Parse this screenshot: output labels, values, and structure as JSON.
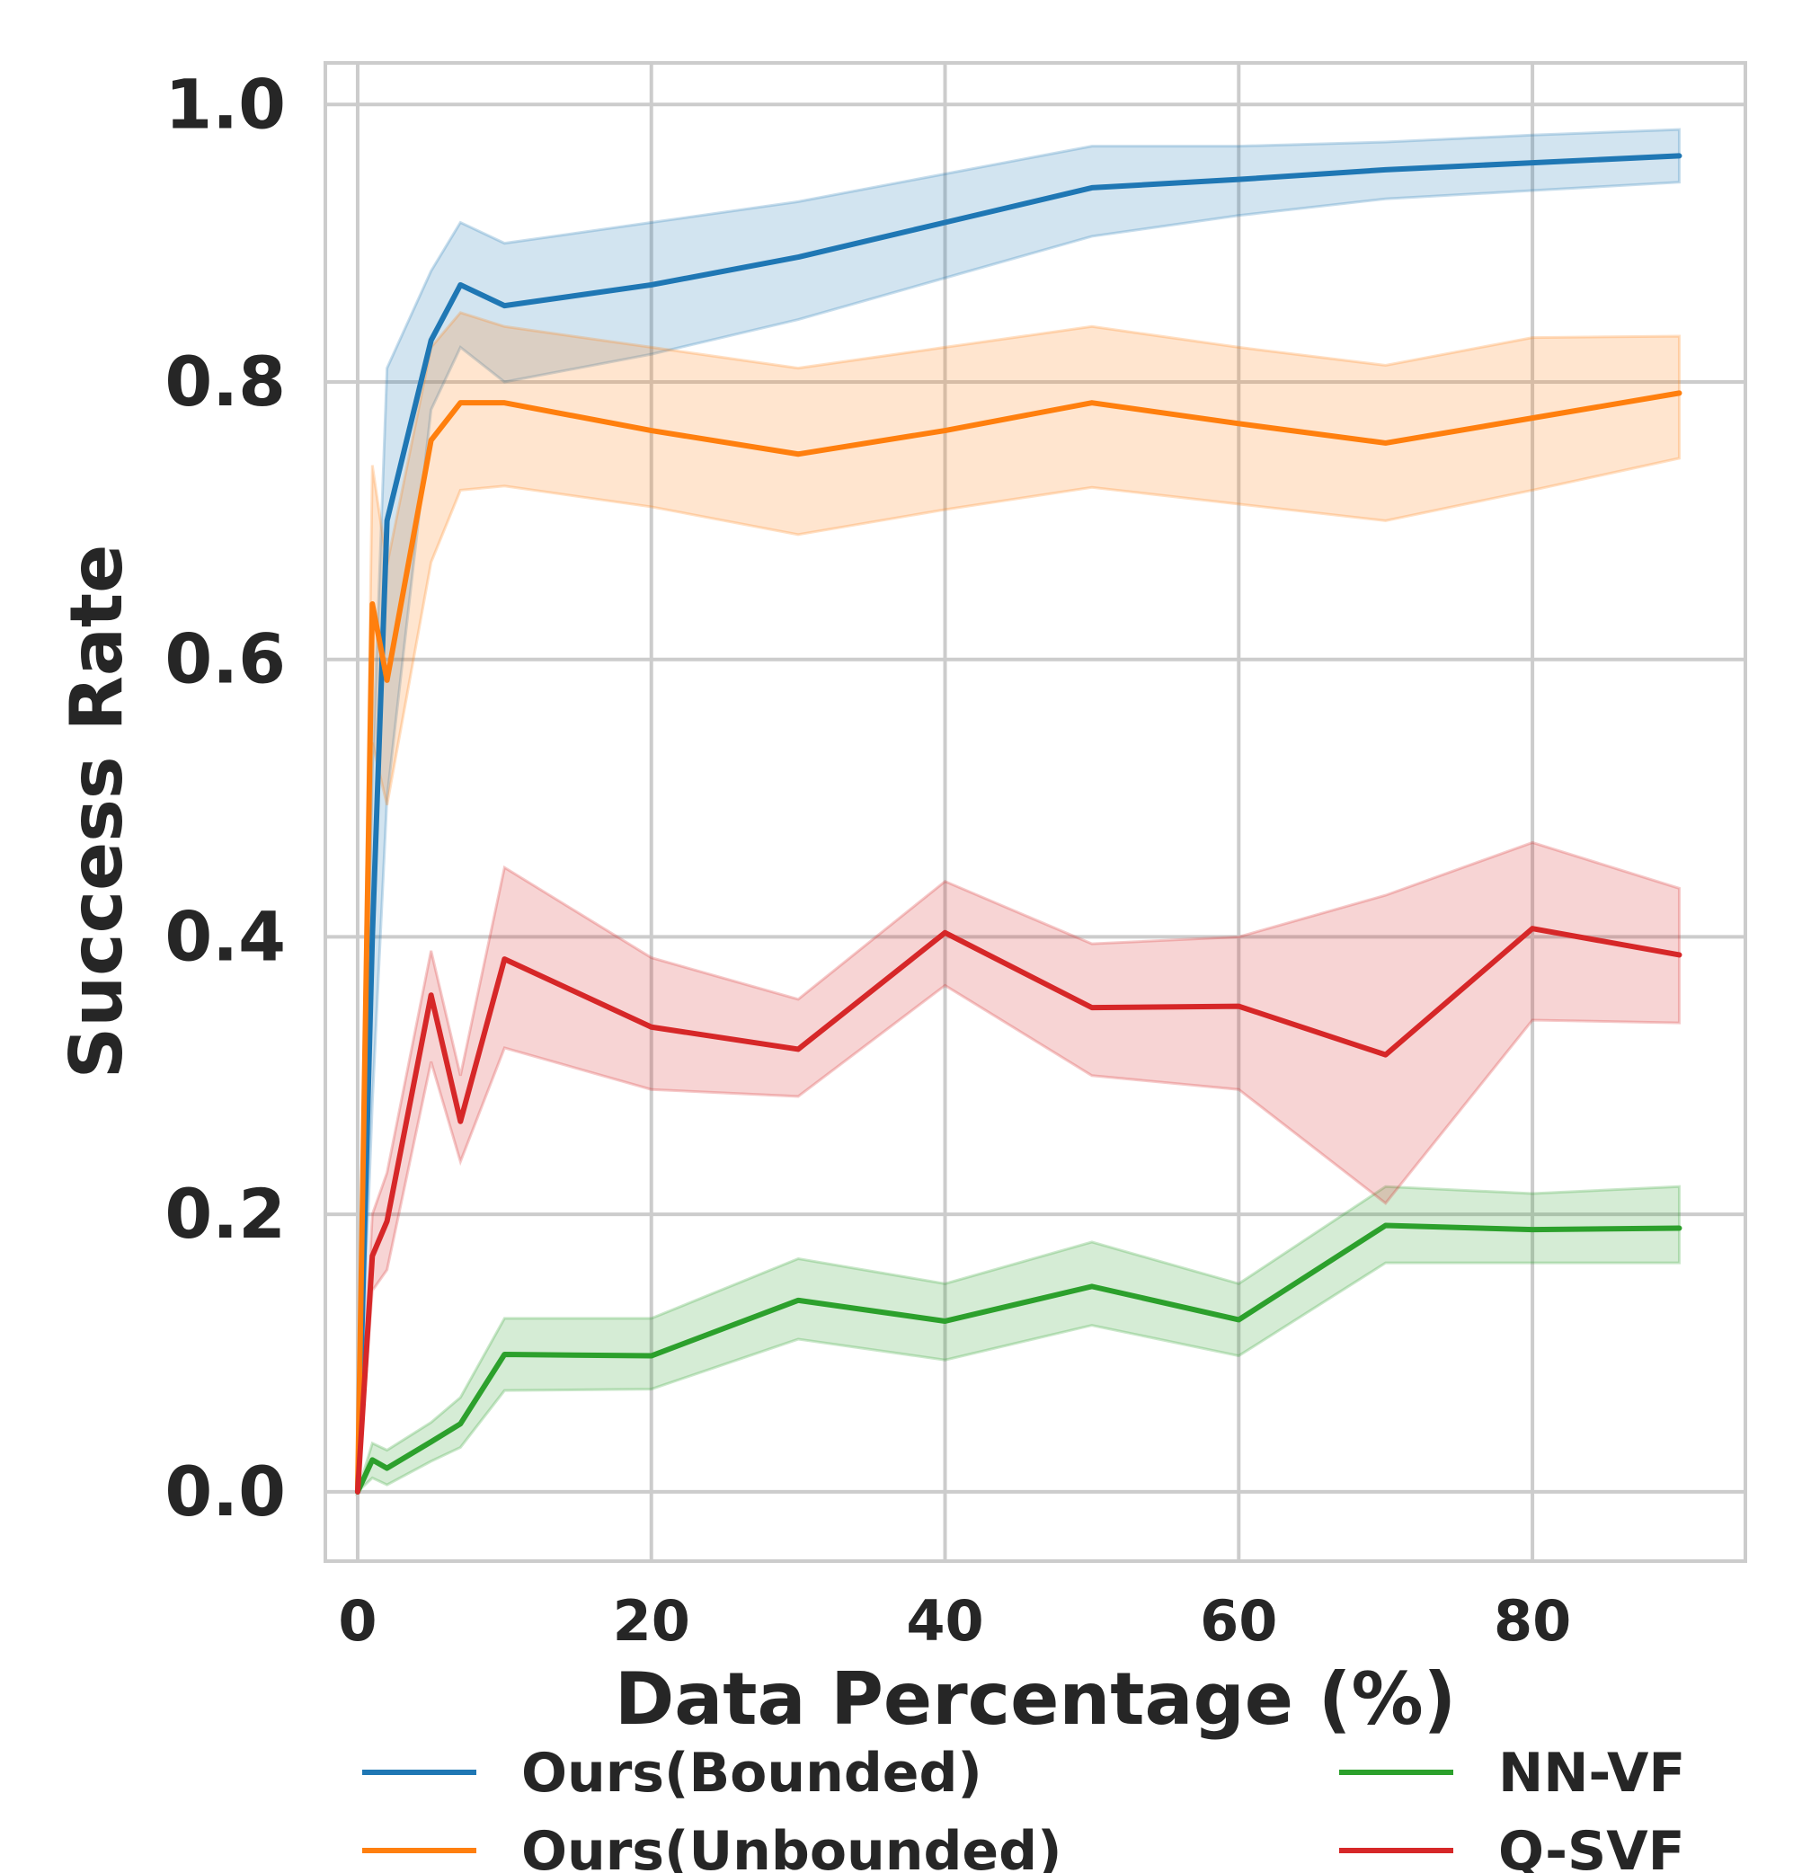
{
  "chart_data": {
    "type": "line",
    "title": "",
    "xlabel": "Data Percentage (%)",
    "ylabel": "Success Rate",
    "xlim": [
      -2.2,
      94.5
    ],
    "ylim": [
      -0.05,
      1.03
    ],
    "xticks": [
      0,
      20,
      40,
      60,
      80
    ],
    "yticks": [
      0.0,
      0.2,
      0.4,
      0.6,
      0.8,
      1.0
    ],
    "xtick_labels": [
      "0",
      "20",
      "40",
      "60",
      "80"
    ],
    "ytick_labels": [
      "0.0",
      "0.2",
      "0.4",
      "0.6",
      "0.8",
      "1.0"
    ],
    "grid": true,
    "legend_position": "bottom",
    "series": [
      {
        "name": "Ours(Bounded)",
        "color": "#1f77b4",
        "x": [
          0,
          1,
          2,
          5,
          7,
          10,
          20,
          30,
          40,
          50,
          60,
          70,
          80,
          90
        ],
        "values": [
          0.0,
          0.4,
          0.7,
          0.83,
          0.87,
          0.855,
          0.87,
          0.89,
          0.915,
          0.94,
          0.946,
          0.953,
          0.958,
          0.963
        ],
        "lower": [
          0.0,
          0.28,
          0.5,
          0.78,
          0.825,
          0.8,
          0.82,
          0.845,
          0.875,
          0.905,
          0.92,
          0.932,
          0.938,
          0.944
        ],
        "upper": [
          0.0,
          0.52,
          0.81,
          0.88,
          0.915,
          0.9,
          0.915,
          0.93,
          0.95,
          0.97,
          0.97,
          0.973,
          0.978,
          0.982
        ]
      },
      {
        "name": "Ours(Unbounded)",
        "color": "#ff7f0e",
        "x": [
          0,
          1,
          2,
          5,
          7,
          10,
          20,
          30,
          40,
          50,
          60,
          70,
          80,
          90
        ],
        "values": [
          0.0,
          0.64,
          0.585,
          0.758,
          0.785,
          0.785,
          0.765,
          0.748,
          0.765,
          0.785,
          0.77,
          0.756,
          0.774,
          0.792
        ],
        "lower": [
          0.0,
          0.54,
          0.495,
          0.67,
          0.722,
          0.725,
          0.71,
          0.69,
          0.708,
          0.724,
          0.712,
          0.7,
          0.722,
          0.745
        ],
        "upper": [
          0.0,
          0.74,
          0.668,
          0.825,
          0.85,
          0.84,
          0.825,
          0.81,
          0.825,
          0.84,
          0.825,
          0.812,
          0.832,
          0.833
        ]
      },
      {
        "name": "NN-VF",
        "color": "#2ca02c",
        "x": [
          0,
          1,
          2,
          5,
          7,
          10,
          20,
          30,
          40,
          50,
          60,
          70,
          80,
          90
        ],
        "values": [
          0.0,
          0.023,
          0.017,
          0.036,
          0.049,
          0.099,
          0.098,
          0.138,
          0.123,
          0.148,
          0.124,
          0.192,
          0.189,
          0.19
        ],
        "lower": [
          0.0,
          0.01,
          0.005,
          0.022,
          0.032,
          0.073,
          0.074,
          0.11,
          0.095,
          0.12,
          0.098,
          0.165,
          0.165,
          0.165
        ],
        "upper": [
          0.0,
          0.035,
          0.03,
          0.05,
          0.068,
          0.125,
          0.125,
          0.168,
          0.15,
          0.18,
          0.15,
          0.22,
          0.215,
          0.22
        ]
      },
      {
        "name": "Q-SVF",
        "color": "#d62728",
        "x": [
          0,
          1,
          2,
          5,
          7,
          10,
          20,
          30,
          40,
          50,
          60,
          70,
          80,
          90
        ],
        "values": [
          0.0,
          0.17,
          0.195,
          0.358,
          0.267,
          0.384,
          0.335,
          0.319,
          0.403,
          0.349,
          0.35,
          0.315,
          0.406,
          0.387
        ],
        "lower": [
          0.0,
          0.145,
          0.16,
          0.31,
          0.238,
          0.32,
          0.29,
          0.285,
          0.365,
          0.3,
          0.29,
          0.208,
          0.34,
          0.338
        ],
        "upper": [
          0.0,
          0.2,
          0.23,
          0.39,
          0.3,
          0.45,
          0.385,
          0.355,
          0.44,
          0.395,
          0.4,
          0.43,
          0.468,
          0.435
        ]
      }
    ]
  }
}
